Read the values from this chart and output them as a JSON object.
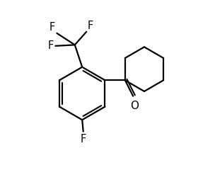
{
  "background_color": "#ffffff",
  "line_color": "#000000",
  "line_width": 1.6,
  "font_size": 10.5,
  "figsize": [
    3.04,
    2.4
  ],
  "dpi": 100,
  "xlim": [
    0,
    10
  ],
  "ylim": [
    0,
    8
  ]
}
